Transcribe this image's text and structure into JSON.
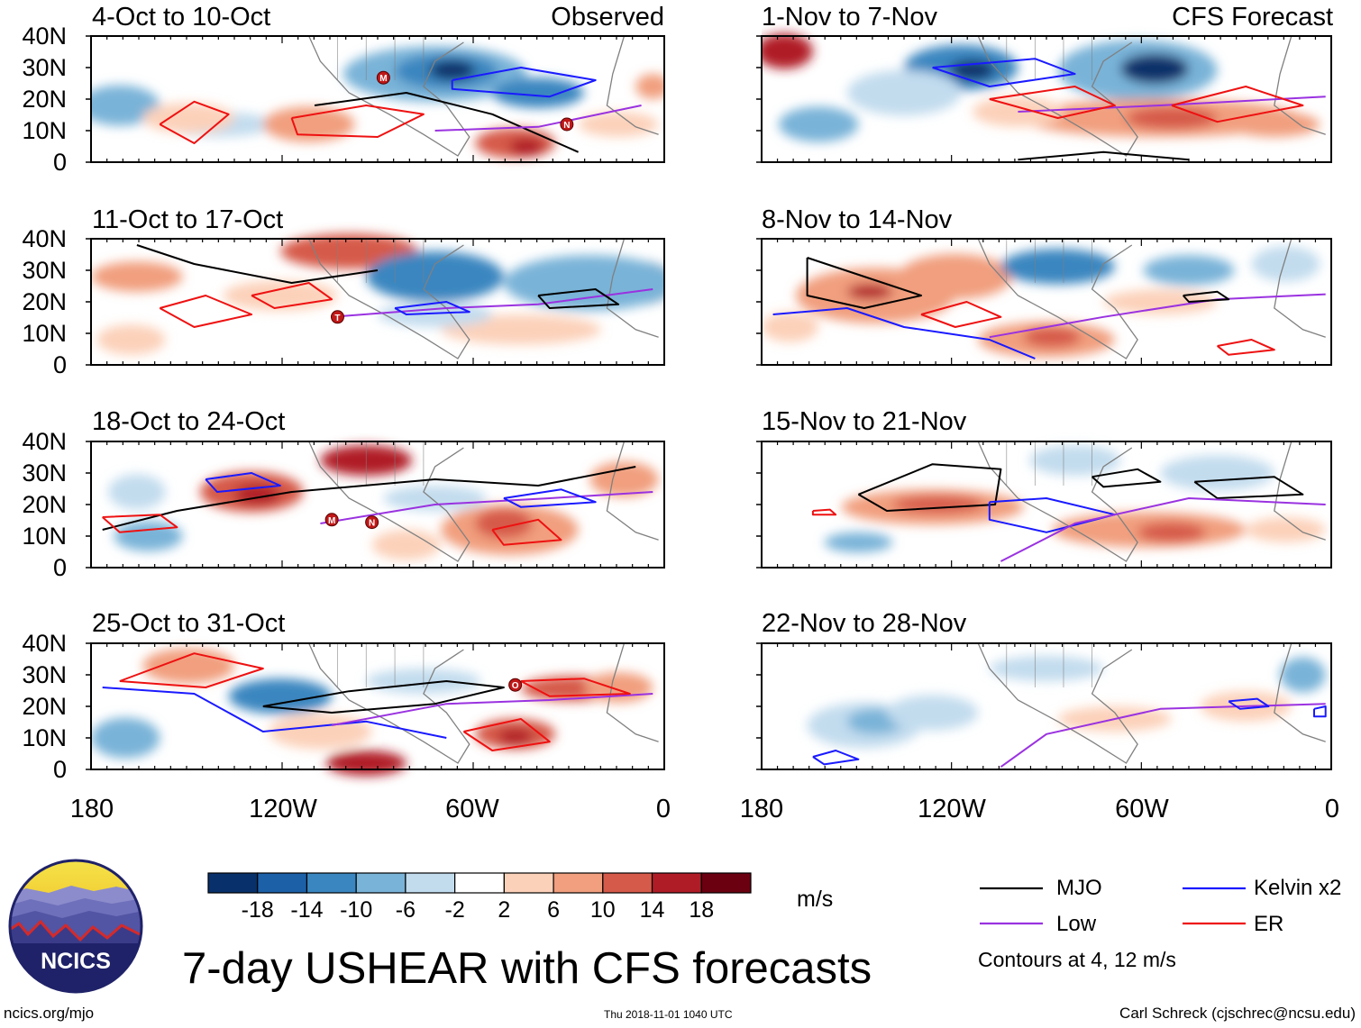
{
  "title": "7-day USHEAR with CFS forecasts",
  "observed_label": "Observed",
  "forecast_label": "CFS Forecast",
  "units": "m/s",
  "contour_note": "Contours at 4, 12 m/s",
  "footer": {
    "website": "ncics.org/mjo",
    "timestamp": "Thu 2018-11-01 1040 UTC",
    "author": "Carl Schreck (cjschrec@ncsu.edu)"
  },
  "logo": {
    "text": "NCICS",
    "icon": "ncics-logo"
  },
  "latitude_labels": [
    "40N",
    "30N",
    "20N",
    "10N",
    "0"
  ],
  "longitude_labels": [
    "180",
    "120W",
    "60W",
    "0"
  ],
  "panels": {
    "observed": [
      {
        "title": "4-Oct to 10-Oct"
      },
      {
        "title": "11-Oct to 17-Oct"
      },
      {
        "title": "18-Oct to 24-Oct"
      },
      {
        "title": "25-Oct to 31-Oct"
      }
    ],
    "forecast": [
      {
        "title": "1-Nov to 7-Nov"
      },
      {
        "title": "8-Nov to 14-Nov"
      },
      {
        "title": "15-Nov to 21-Nov"
      },
      {
        "title": "22-Nov to 28-Nov"
      }
    ]
  },
  "storm_markers": [
    "M",
    "N",
    "T",
    "O"
  ],
  "colorbar": {
    "tick_labels": [
      "-18",
      "-14",
      "-10",
      "-6",
      "-2",
      "2",
      "6",
      "10",
      "14",
      "18"
    ],
    "colors": [
      "#08306b",
      "#1c60a8",
      "#3a86c0",
      "#79b3d8",
      "#c2dcee",
      "#ffffff",
      "#fcd1ba",
      "#f19f7e",
      "#d65a4a",
      "#b01c26",
      "#6b0010"
    ]
  },
  "legend": {
    "mjo": {
      "label": "MJO",
      "color": "#000000"
    },
    "kelvin": {
      "label": "Kelvin x2",
      "color": "#1a1aff"
    },
    "low": {
      "label": "Low",
      "color": "#9a32e0"
    },
    "er": {
      "label": "ER",
      "color": "#ee1111"
    }
  },
  "colors": {
    "land_outline": "#808080",
    "frame": "#000000"
  }
}
